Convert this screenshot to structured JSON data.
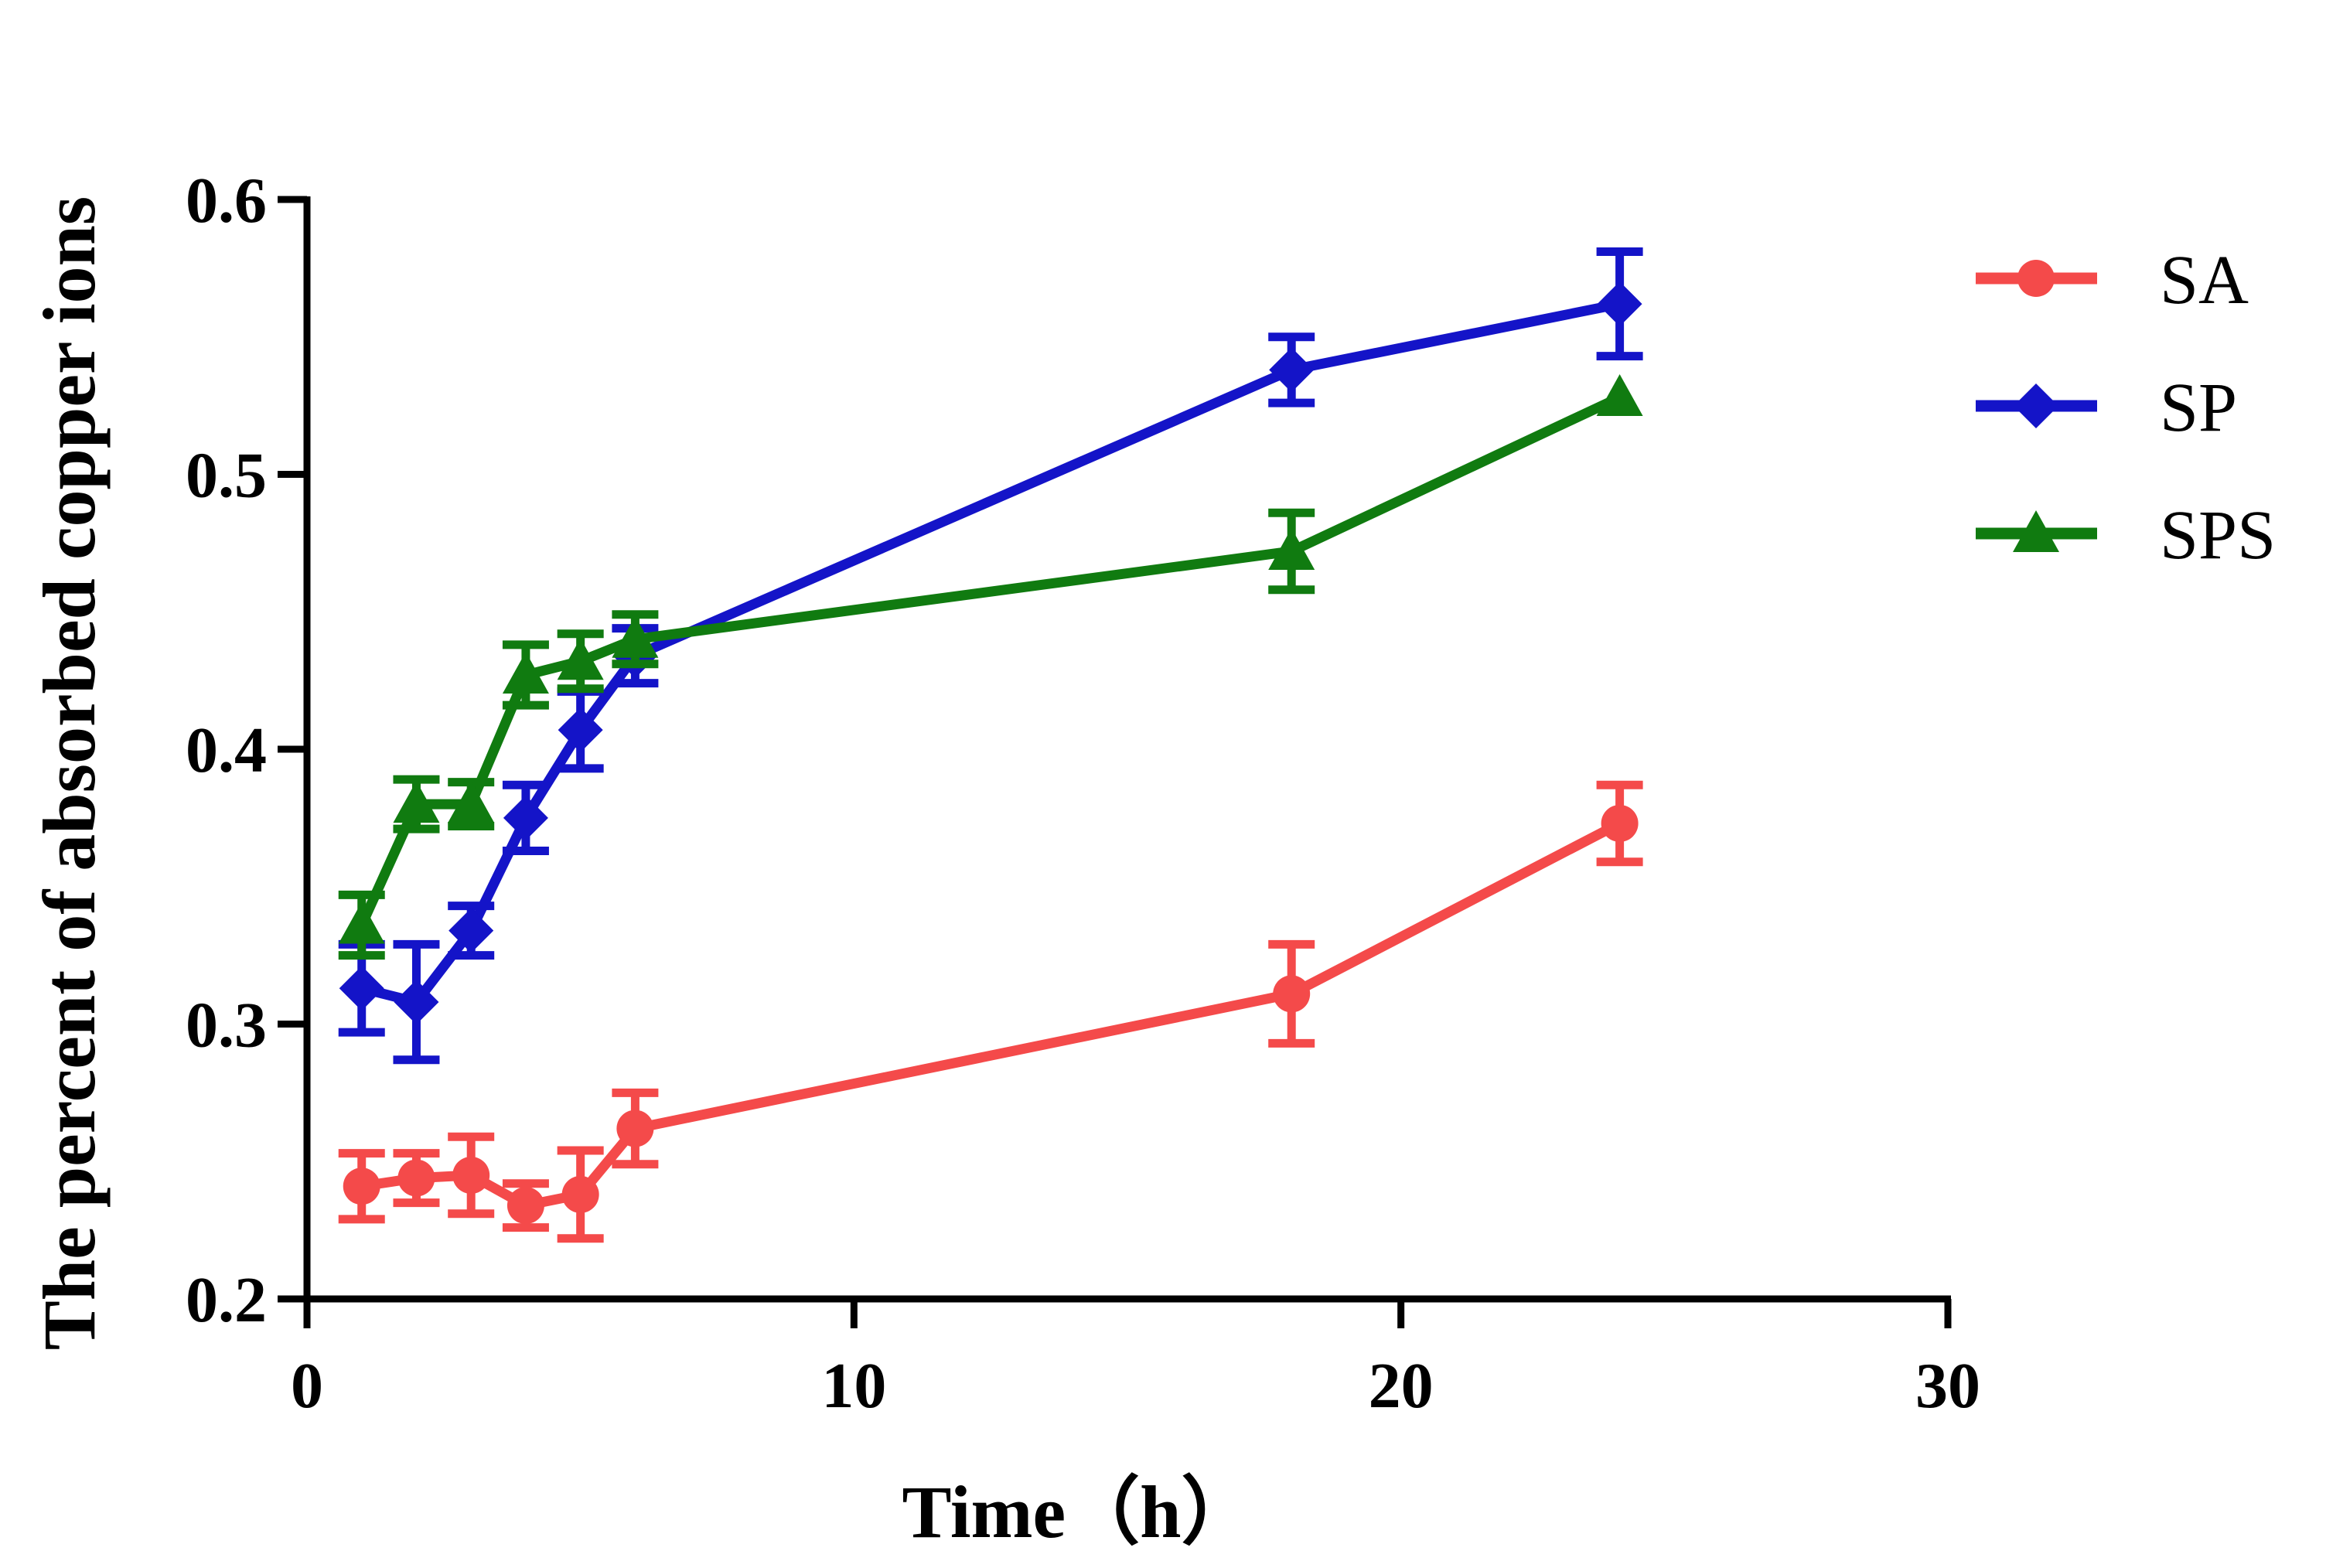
{
  "chart_data": {
    "type": "line",
    "title": "",
    "xlabel": "Time（h）",
    "ylabel": "The percent of absorbed copper ions",
    "xlim": [
      0,
      30
    ],
    "ylim": [
      0.2,
      0.6
    ],
    "xticks": [
      0,
      10,
      20,
      30
    ],
    "xtick_labels": [
      "0",
      "10",
      "20",
      "30"
    ],
    "yticks": [
      0.2,
      0.3,
      0.4,
      0.5,
      0.6
    ],
    "ytick_labels": [
      "0.2",
      "0.3",
      "0.4",
      "0.5",
      "0.6"
    ],
    "grid": false,
    "legend_position": "right",
    "series": [
      {
        "name": "SA",
        "color": "#f44a4a",
        "marker": "circle",
        "x": [
          1,
          2,
          3,
          4,
          5,
          6,
          18,
          24
        ],
        "y": [
          0.241,
          0.244,
          0.245,
          0.234,
          0.238,
          0.262,
          0.311,
          0.373
        ],
        "err": [
          0.012,
          0.009,
          0.014,
          0.008,
          0.016,
          0.013,
          0.018,
          0.014
        ]
      },
      {
        "name": "SP",
        "color": "#1414c8",
        "marker": "diamond",
        "x": [
          1,
          2,
          3,
          4,
          5,
          6,
          18,
          24
        ],
        "y": [
          0.313,
          0.308,
          0.334,
          0.375,
          0.407,
          0.434,
          0.538,
          0.562
        ],
        "err": [
          0.016,
          0.021,
          0.009,
          0.012,
          0.014,
          0.01,
          0.012,
          0.019
        ]
      },
      {
        "name": "SPS",
        "color": "#107b10",
        "marker": "triangle",
        "x": [
          1,
          2,
          3,
          4,
          5,
          6,
          18,
          24
        ],
        "y": [
          0.336,
          0.38,
          0.38,
          0.427,
          0.432,
          0.44,
          0.472,
          0.528
        ],
        "err": [
          0.011,
          0.009,
          0.008,
          0.011,
          0.01,
          0.009,
          0.014,
          0.0
        ]
      }
    ]
  }
}
